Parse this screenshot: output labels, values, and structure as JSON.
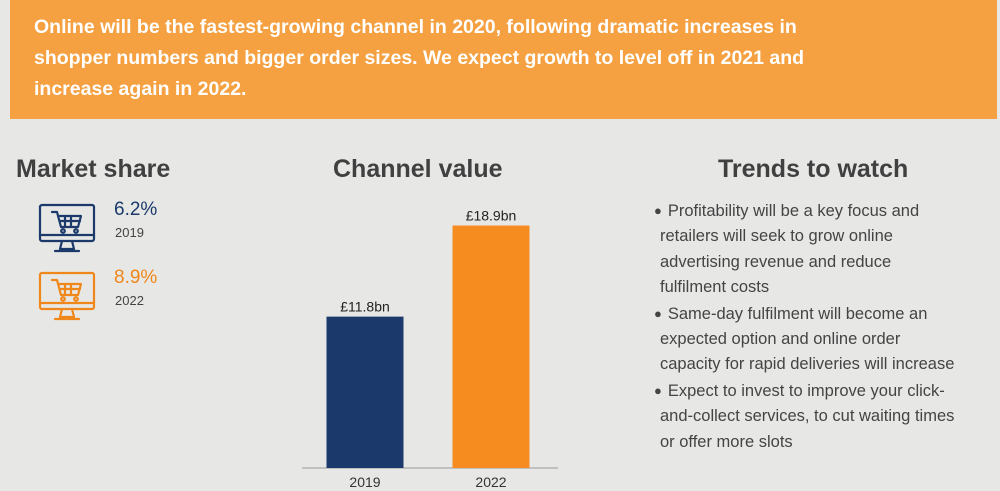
{
  "banner": {
    "lines": [
      "Online will be the fastest-growing channel in 2020, following dramatic increases in",
      "shopper numbers and bigger order sizes. We expect growth to level off in 2021 and",
      "increase again in 2022."
    ]
  },
  "market_share": {
    "title": "Market share",
    "entries": [
      {
        "value": "6.2%",
        "year": "2019",
        "color": "#1b3a6b",
        "icon": "computer-cart-icon"
      },
      {
        "value": "8.9%",
        "year": "2022",
        "color": "#f0871a",
        "icon": "computer-cart-icon"
      }
    ]
  },
  "channel_value": {
    "title": "Channel value"
  },
  "trends": {
    "title": "Trends to watch",
    "items": [
      {
        "lines": [
          "Profitability will be a key focus and",
          "retailers will seek to grow online",
          "advertising revenue and reduce",
          "fulfilment costs"
        ]
      },
      {
        "lines": [
          "Same-day fulfilment will become an",
          "expected option and online order",
          "capacity for rapid deliveries will increase"
        ]
      },
      {
        "lines": [
          "Expect to invest to improve your click-",
          "and-collect services, to cut waiting times",
          "or offer more slots"
        ]
      }
    ]
  },
  "chart_data": {
    "type": "bar",
    "title": "Channel value",
    "categories": [
      "2019",
      "2022"
    ],
    "values": [
      11.8,
      18.9
    ],
    "data_labels": [
      "£11.8bn",
      "£18.9bn"
    ],
    "colors": [
      "#1b3a6b",
      "#f68b1f"
    ],
    "ylim": [
      0,
      20.5
    ],
    "grid": false
  }
}
